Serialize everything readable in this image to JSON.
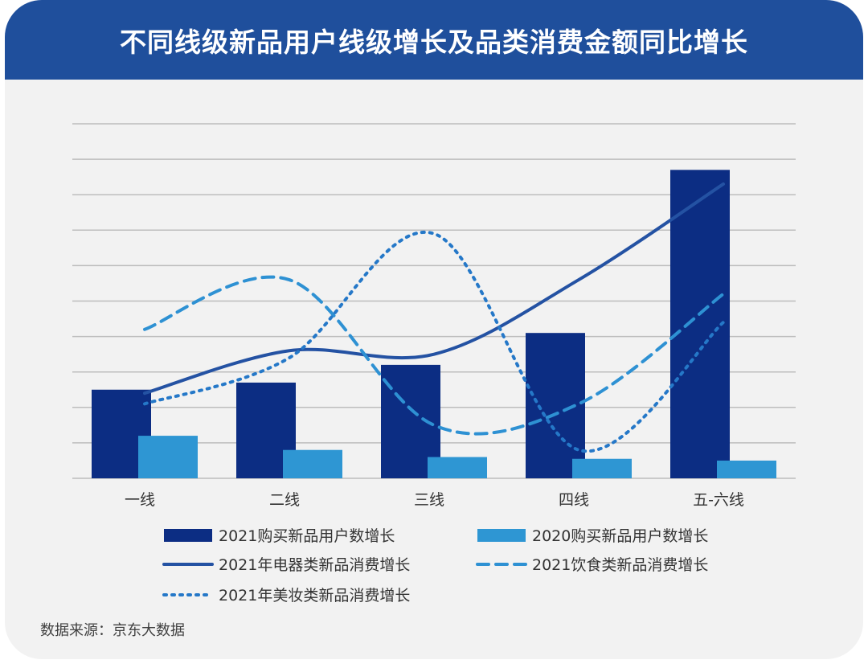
{
  "header": {
    "title": "不同线级新品用户线级增长及品类消费金额同比增长"
  },
  "source": "数据来源：京东大数据",
  "colors": {
    "dark_blue": "#0c2d83",
    "light_blue": "#2e96d3",
    "line_blue": "#2452a3",
    "dash_blue": "#2e91d3",
    "dot_blue": "#2578c8",
    "grid": "#bdbdbd"
  },
  "chart_data": {
    "type": "bar",
    "categories": [
      "一线",
      "二线",
      "三线",
      "四线",
      "五-六线"
    ],
    "ylim": [
      0,
      10
    ],
    "grid": true,
    "legend_position": "bottom",
    "series": [
      {
        "name": "2021购买新品用户数增长",
        "kind": "bar",
        "style": "solid",
        "color": "#0c2d83",
        "values": [
          2.5,
          2.7,
          3.2,
          4.1,
          8.7
        ]
      },
      {
        "name": "2020购买新品用户数增长",
        "kind": "bar",
        "style": "solid",
        "color": "#2e96d3",
        "values": [
          1.2,
          0.8,
          0.6,
          0.55,
          0.5
        ]
      },
      {
        "name": "2021年电器类新品消费增长",
        "kind": "line",
        "style": "solid",
        "color": "#2452a3",
        "values": [
          2.4,
          3.6,
          3.5,
          5.6,
          8.3
        ]
      },
      {
        "name": "2021饮食类新品消费增长",
        "kind": "line",
        "style": "dashed",
        "color": "#2e91d3",
        "values": [
          4.2,
          5.6,
          1.5,
          2.1,
          5.2
        ]
      },
      {
        "name": "2021年美妆类新品消费增长",
        "kind": "line",
        "style": "dotted",
        "color": "#2578c8",
        "values": [
          2.1,
          3.4,
          6.9,
          0.8,
          4.4
        ]
      }
    ]
  }
}
